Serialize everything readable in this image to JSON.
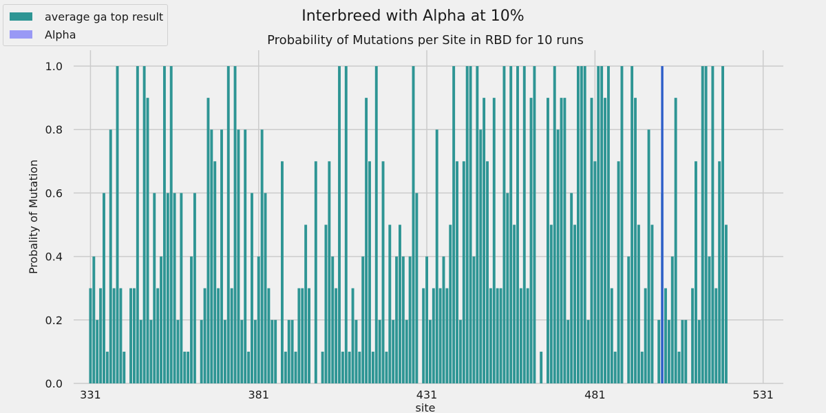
{
  "chart_data": {
    "type": "bar",
    "suptitle": "Interbreed with Alpha at 10%",
    "title": "Probability of Mutations per Site in RBD for 10 runs",
    "xlabel": "site",
    "ylabel": "Probality of Mutation",
    "xlim": [
      326,
      537
    ],
    "ylim": [
      0,
      1.05
    ],
    "xticks": [
      "331",
      "381",
      "431",
      "481",
      "531"
    ],
    "yticks": [
      "0.0",
      "0.2",
      "0.4",
      "0.6",
      "0.8",
      "1.0"
    ],
    "grid": true,
    "legend_position": "upper-left",
    "series": [
      {
        "name": "average ga top result",
        "color": "#2e9594",
        "x_start": 331,
        "values": [
          0.3,
          0.4,
          0.2,
          0.3,
          0.6,
          0.1,
          0.8,
          0.3,
          1.0,
          0.3,
          0.1,
          0,
          0.3,
          0.3,
          1.0,
          0.2,
          1.0,
          0.9,
          0.2,
          0.6,
          0.3,
          0.4,
          1.0,
          0.6,
          1.0,
          0.6,
          0.2,
          0.6,
          0.1,
          0.1,
          0.4,
          0.6,
          0,
          0.2,
          0.3,
          0.9,
          0.8,
          0.7,
          0.3,
          0.8,
          0.2,
          1.0,
          0.3,
          1.0,
          0.8,
          0.2,
          0.8,
          0.1,
          0.6,
          0.2,
          0.4,
          0.8,
          0.6,
          0.3,
          0.2,
          0.2,
          0,
          0.7,
          0.1,
          0.2,
          0.2,
          0.1,
          0.3,
          0.3,
          0.5,
          0.3,
          0,
          0.7,
          0,
          0.1,
          0.5,
          0.7,
          0.4,
          0.3,
          1.0,
          0.1,
          1.0,
          0.1,
          0.3,
          0.2,
          0.1,
          0.4,
          0.9,
          0.7,
          0.1,
          1.0,
          0.2,
          0.7,
          0.1,
          0.5,
          0.2,
          0.4,
          0.5,
          0.4,
          0.2,
          0.4,
          1.0,
          0.6,
          0,
          0.3,
          0.4,
          0.2,
          0.3,
          0.8,
          0.3,
          0.4,
          0.3,
          0.5,
          1.0,
          0.7,
          0.2,
          0.7,
          1.0,
          1.0,
          0.4,
          1.0,
          0.8,
          0.9,
          0.7,
          0.3,
          0.9,
          0.3,
          0.3,
          1.0,
          0.6,
          1.0,
          0.5,
          1.0,
          0.3,
          1.0,
          0.3,
          0.9,
          1.0,
          0,
          0.1,
          0,
          0.9,
          0.5,
          1.0,
          0.8,
          0.9,
          0.9,
          0.2,
          0.6,
          0.5,
          1.0,
          1.0,
          1.0,
          0.2,
          0.9,
          0.7,
          1.0,
          1.0,
          0.9,
          1.0,
          0.3,
          0.1,
          0.7,
          1.0,
          0,
          0.4,
          1.0,
          0.9,
          0.5,
          0.1,
          0.3,
          0.8,
          0.5,
          0,
          0.2,
          0.6,
          0.3,
          0.2,
          0.4,
          0.9,
          0.1,
          0.2,
          0.2,
          0,
          0.3,
          0.7,
          0.2,
          1.0,
          1.0,
          0.4,
          1.0,
          0.3,
          0.7,
          1.0,
          0.5
        ]
      },
      {
        "name": "Alpha",
        "color": "#9999f5",
        "x": [
          501
        ],
        "values": [
          1.0
        ]
      }
    ]
  }
}
